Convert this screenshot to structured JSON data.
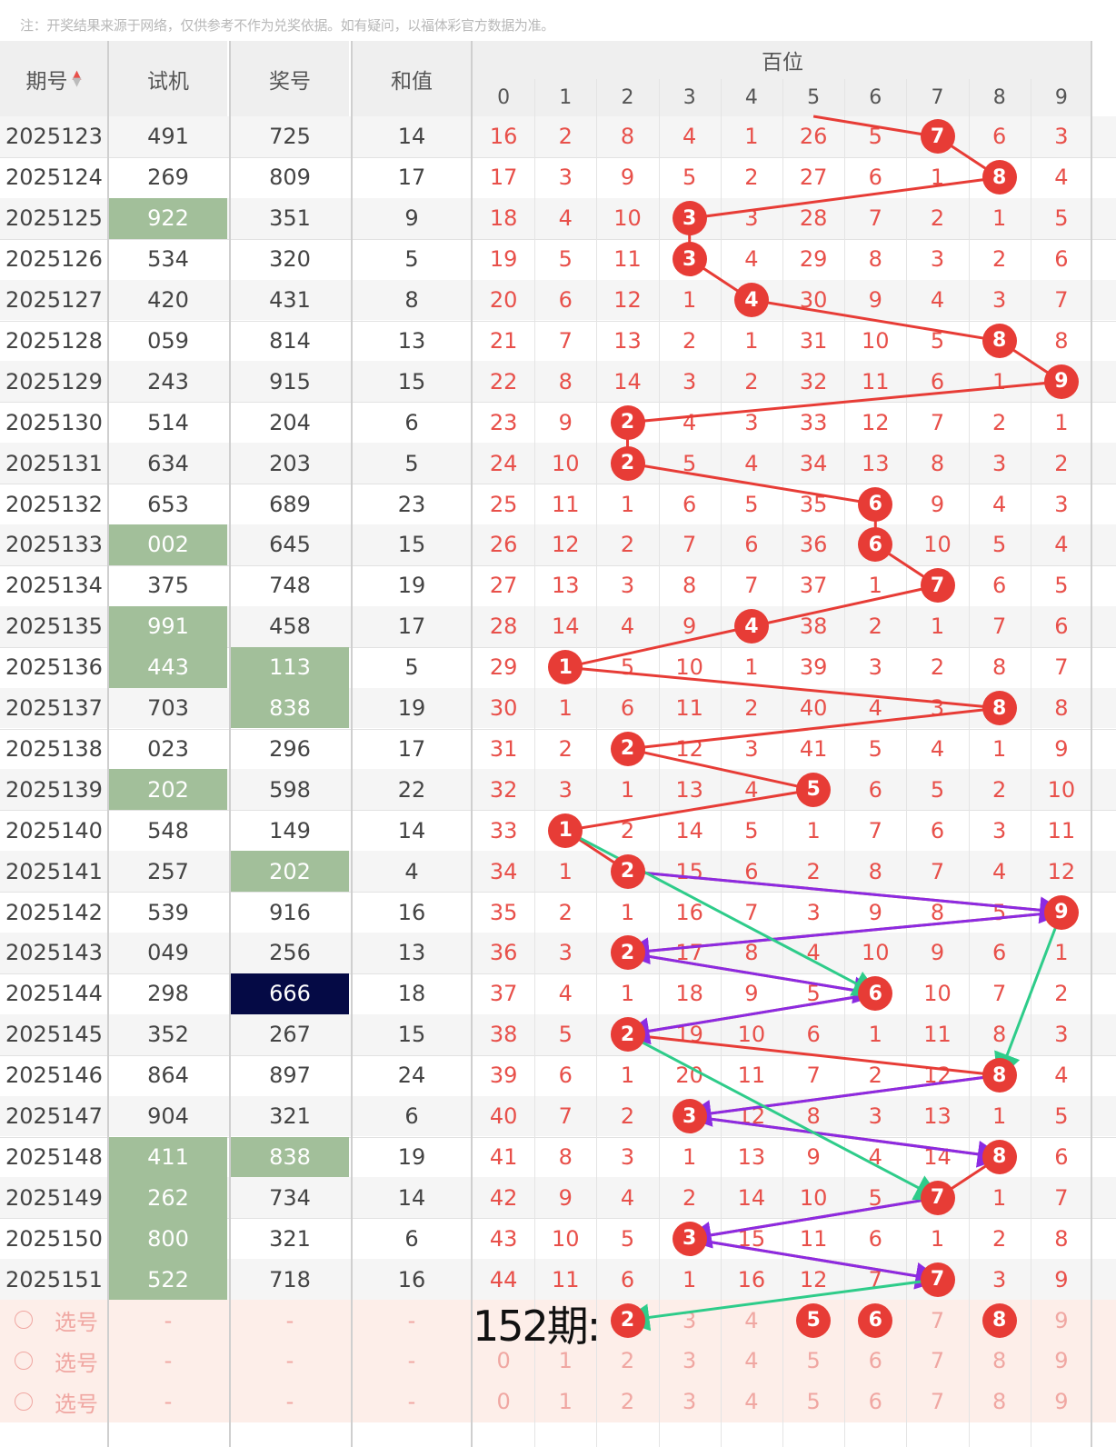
{
  "note": "注：开奖结果来源于网络，仅供参考不作为兑奖依据。如有疑问，以福体彩官方数据为准。",
  "headers": {
    "issue": "期号",
    "sort_icon": "sort-arrows-icon",
    "trial": "试机",
    "draw": "奖号",
    "sum": "和值",
    "group": "百位",
    "digits": [
      "0",
      "1",
      "2",
      "3",
      "4",
      "5",
      "6",
      "7",
      "8",
      "9"
    ]
  },
  "colors": {
    "hit_ball": "#e73c36",
    "miss_text": "#e8504a",
    "repeat_highlight": "#a2bf9a",
    "triple_highlight": "#050a45",
    "arrow_purple": "#8b2be2",
    "arrow_green": "#2ecc8a",
    "pick_row_bg": "#fdeee9"
  },
  "rows": [
    {
      "issue": "2025123",
      "trial": "491",
      "draw": "725",
      "sum": "14",
      "trial_hl": "",
      "draw_hl": "",
      "digits": [
        "16",
        "2",
        "8",
        "4",
        "1",
        "26",
        "5",
        "7",
        "6",
        "3"
      ],
      "hit": [
        7
      ]
    },
    {
      "issue": "2025124",
      "trial": "269",
      "draw": "809",
      "sum": "17",
      "trial_hl": "",
      "draw_hl": "",
      "digits": [
        "17",
        "3",
        "9",
        "5",
        "2",
        "27",
        "6",
        "1",
        "8",
        "4"
      ],
      "hit": [
        8
      ]
    },
    {
      "issue": "2025125",
      "trial": "922",
      "draw": "351",
      "sum": "9",
      "trial_hl": "green",
      "draw_hl": "",
      "digits": [
        "18",
        "4",
        "10",
        "3",
        "3",
        "28",
        "7",
        "2",
        "1",
        "5"
      ],
      "hit": [
        3
      ]
    },
    {
      "issue": "2025126",
      "trial": "534",
      "draw": "320",
      "sum": "5",
      "trial_hl": "",
      "draw_hl": "",
      "digits": [
        "19",
        "5",
        "11",
        "3",
        "4",
        "29",
        "8",
        "3",
        "2",
        "6"
      ],
      "hit": [
        3
      ]
    },
    {
      "issue": "2025127",
      "trial": "420",
      "draw": "431",
      "sum": "8",
      "trial_hl": "",
      "draw_hl": "",
      "digits": [
        "20",
        "6",
        "12",
        "1",
        "4",
        "30",
        "9",
        "4",
        "3",
        "7"
      ],
      "hit": [
        4
      ]
    },
    {
      "issue": "2025128",
      "trial": "059",
      "draw": "814",
      "sum": "13",
      "trial_hl": "",
      "draw_hl": "",
      "digits": [
        "21",
        "7",
        "13",
        "2",
        "1",
        "31",
        "10",
        "5",
        "8",
        "8"
      ],
      "hit": [
        8
      ]
    },
    {
      "issue": "2025129",
      "trial": "243",
      "draw": "915",
      "sum": "15",
      "trial_hl": "",
      "draw_hl": "",
      "digits": [
        "22",
        "8",
        "14",
        "3",
        "2",
        "32",
        "11",
        "6",
        "1",
        "9"
      ],
      "hit": [
        9
      ]
    },
    {
      "issue": "2025130",
      "trial": "514",
      "draw": "204",
      "sum": "6",
      "trial_hl": "",
      "draw_hl": "",
      "digits": [
        "23",
        "9",
        "2",
        "4",
        "3",
        "33",
        "12",
        "7",
        "2",
        "1"
      ],
      "hit": [
        2
      ]
    },
    {
      "issue": "2025131",
      "trial": "634",
      "draw": "203",
      "sum": "5",
      "trial_hl": "",
      "draw_hl": "",
      "digits": [
        "24",
        "10",
        "2",
        "5",
        "4",
        "34",
        "13",
        "8",
        "3",
        "2"
      ],
      "hit": [
        2
      ]
    },
    {
      "issue": "2025132",
      "trial": "653",
      "draw": "689",
      "sum": "23",
      "trial_hl": "",
      "draw_hl": "",
      "digits": [
        "25",
        "11",
        "1",
        "6",
        "5",
        "35",
        "6",
        "9",
        "4",
        "3"
      ],
      "hit": [
        6
      ]
    },
    {
      "issue": "2025133",
      "trial": "002",
      "draw": "645",
      "sum": "15",
      "trial_hl": "green",
      "draw_hl": "",
      "digits": [
        "26",
        "12",
        "2",
        "7",
        "6",
        "36",
        "6",
        "10",
        "5",
        "4"
      ],
      "hit": [
        6
      ]
    },
    {
      "issue": "2025134",
      "trial": "375",
      "draw": "748",
      "sum": "19",
      "trial_hl": "",
      "draw_hl": "",
      "digits": [
        "27",
        "13",
        "3",
        "8",
        "7",
        "37",
        "1",
        "7",
        "6",
        "5"
      ],
      "hit": [
        7
      ]
    },
    {
      "issue": "2025135",
      "trial": "991",
      "draw": "458",
      "sum": "17",
      "trial_hl": "green",
      "draw_hl": "",
      "digits": [
        "28",
        "14",
        "4",
        "9",
        "4",
        "38",
        "2",
        "1",
        "7",
        "6"
      ],
      "hit": [
        4
      ]
    },
    {
      "issue": "2025136",
      "trial": "443",
      "draw": "113",
      "sum": "5",
      "trial_hl": "green",
      "draw_hl": "green",
      "digits": [
        "29",
        "1",
        "5",
        "10",
        "1",
        "39",
        "3",
        "2",
        "8",
        "7"
      ],
      "hit": [
        1
      ]
    },
    {
      "issue": "2025137",
      "trial": "703",
      "draw": "838",
      "sum": "19",
      "trial_hl": "",
      "draw_hl": "green",
      "digits": [
        "30",
        "1",
        "6",
        "11",
        "2",
        "40",
        "4",
        "3",
        "8",
        "8"
      ],
      "hit": [
        8
      ]
    },
    {
      "issue": "2025138",
      "trial": "023",
      "draw": "296",
      "sum": "17",
      "trial_hl": "",
      "draw_hl": "",
      "digits": [
        "31",
        "2",
        "2",
        "12",
        "3",
        "41",
        "5",
        "4",
        "1",
        "9"
      ],
      "hit": [
        2
      ]
    },
    {
      "issue": "2025139",
      "trial": "202",
      "draw": "598",
      "sum": "22",
      "trial_hl": "green",
      "draw_hl": "",
      "digits": [
        "32",
        "3",
        "1",
        "13",
        "4",
        "5",
        "6",
        "5",
        "2",
        "10"
      ],
      "hit": [
        5
      ]
    },
    {
      "issue": "2025140",
      "trial": "548",
      "draw": "149",
      "sum": "14",
      "trial_hl": "",
      "draw_hl": "",
      "digits": [
        "33",
        "1",
        "2",
        "14",
        "5",
        "1",
        "7",
        "6",
        "3",
        "11"
      ],
      "hit": [
        1
      ]
    },
    {
      "issue": "2025141",
      "trial": "257",
      "draw": "202",
      "sum": "4",
      "trial_hl": "",
      "draw_hl": "green",
      "digits": [
        "34",
        "1",
        "2",
        "15",
        "6",
        "2",
        "8",
        "7",
        "4",
        "12"
      ],
      "hit": [
        2
      ]
    },
    {
      "issue": "2025142",
      "trial": "539",
      "draw": "916",
      "sum": "16",
      "trial_hl": "",
      "draw_hl": "",
      "digits": [
        "35",
        "2",
        "1",
        "16",
        "7",
        "3",
        "9",
        "8",
        "5",
        "9"
      ],
      "hit": [
        9
      ]
    },
    {
      "issue": "2025143",
      "trial": "049",
      "draw": "256",
      "sum": "13",
      "trial_hl": "",
      "draw_hl": "",
      "digits": [
        "36",
        "3",
        "2",
        "17",
        "8",
        "4",
        "10",
        "9",
        "6",
        "1"
      ],
      "hit": [
        2
      ]
    },
    {
      "issue": "2025144",
      "trial": "298",
      "draw": "666",
      "sum": "18",
      "trial_hl": "",
      "draw_hl": "navy",
      "digits": [
        "37",
        "4",
        "1",
        "18",
        "9",
        "5",
        "6",
        "10",
        "7",
        "2"
      ],
      "hit": [
        6
      ]
    },
    {
      "issue": "2025145",
      "trial": "352",
      "draw": "267",
      "sum": "15",
      "trial_hl": "",
      "draw_hl": "",
      "digits": [
        "38",
        "5",
        "2",
        "19",
        "10",
        "6",
        "1",
        "11",
        "8",
        "3"
      ],
      "hit": [
        2
      ]
    },
    {
      "issue": "2025146",
      "trial": "864",
      "draw": "897",
      "sum": "24",
      "trial_hl": "",
      "draw_hl": "",
      "digits": [
        "39",
        "6",
        "1",
        "20",
        "11",
        "7",
        "2",
        "12",
        "8",
        "4"
      ],
      "hit": [
        8
      ]
    },
    {
      "issue": "2025147",
      "trial": "904",
      "draw": "321",
      "sum": "6",
      "trial_hl": "",
      "draw_hl": "",
      "digits": [
        "40",
        "7",
        "2",
        "3",
        "12",
        "8",
        "3",
        "13",
        "1",
        "5"
      ],
      "hit": [
        3
      ]
    },
    {
      "issue": "2025148",
      "trial": "411",
      "draw": "838",
      "sum": "19",
      "trial_hl": "green",
      "draw_hl": "green",
      "digits": [
        "41",
        "8",
        "3",
        "1",
        "13",
        "9",
        "4",
        "14",
        "8",
        "6"
      ],
      "hit": [
        8
      ]
    },
    {
      "issue": "2025149",
      "trial": "262",
      "draw": "734",
      "sum": "14",
      "trial_hl": "green",
      "draw_hl": "",
      "digits": [
        "42",
        "9",
        "4",
        "2",
        "14",
        "10",
        "5",
        "7",
        "1",
        "7"
      ],
      "hit": [
        7
      ]
    },
    {
      "issue": "2025150",
      "trial": "800",
      "draw": "321",
      "sum": "6",
      "trial_hl": "green",
      "draw_hl": "",
      "digits": [
        "43",
        "10",
        "5",
        "3",
        "15",
        "11",
        "6",
        "1",
        "2",
        "8"
      ],
      "hit": [
        3
      ]
    },
    {
      "issue": "2025151",
      "trial": "522",
      "draw": "718",
      "sum": "16",
      "trial_hl": "green",
      "draw_hl": "",
      "digits": [
        "44",
        "11",
        "6",
        "1",
        "16",
        "12",
        "7",
        "7",
        "3",
        "9"
      ],
      "hit": [
        7
      ]
    }
  ],
  "pick_rows": [
    {
      "label": "选号",
      "trial": "-",
      "draw": "-",
      "sum": "-",
      "digits": [
        "",
        "",
        "2",
        "3",
        "4",
        "5",
        "6",
        "7",
        "8",
        "9"
      ],
      "hit": [
        2,
        5,
        6,
        8
      ]
    },
    {
      "label": "选号",
      "trial": "-",
      "draw": "-",
      "sum": "-",
      "digits": [
        "0",
        "1",
        "2",
        "3",
        "4",
        "5",
        "6",
        "7",
        "8",
        "9"
      ],
      "hit": []
    },
    {
      "label": "选号",
      "trial": "-",
      "draw": "-",
      "sum": "-",
      "digits": [
        "0",
        "1",
        "2",
        "3",
        "4",
        "5",
        "6",
        "7",
        "8",
        "9"
      ],
      "hit": []
    }
  ],
  "caption": "152期:",
  "red_path": [
    [
      0,
      7
    ],
    [
      1,
      8
    ],
    [
      2,
      3
    ],
    [
      3,
      3
    ],
    [
      4,
      4
    ],
    [
      5,
      8
    ],
    [
      6,
      9
    ],
    [
      7,
      2
    ],
    [
      8,
      2
    ],
    [
      9,
      6
    ],
    [
      10,
      6
    ],
    [
      11,
      7
    ],
    [
      12,
      4
    ],
    [
      13,
      1
    ],
    [
      14,
      8
    ],
    [
      15,
      2
    ],
    [
      16,
      5
    ],
    [
      17,
      1
    ],
    [
      18,
      2
    ],
    [
      19,
      9
    ],
    [
      20,
      2
    ],
    [
      21,
      6
    ],
    [
      22,
      2
    ],
    [
      23,
      8
    ],
    [
      24,
      3
    ],
    [
      25,
      8
    ],
    [
      26,
      7
    ],
    [
      27,
      3
    ],
    [
      28,
      7
    ]
  ],
  "purple_arrows": [
    [
      [
        18,
        2
      ],
      [
        19,
        9
      ]
    ],
    [
      [
        19,
        9
      ],
      [
        20,
        2
      ]
    ],
    [
      [
        20,
        2
      ],
      [
        21,
        6
      ]
    ],
    [
      [
        21,
        6
      ],
      [
        22,
        2
      ]
    ],
    [
      [
        23,
        8
      ],
      [
        24,
        3
      ]
    ],
    [
      [
        24,
        3
      ],
      [
        25,
        8
      ]
    ],
    [
      [
        26,
        7
      ],
      [
        27,
        3
      ]
    ],
    [
      [
        27,
        3
      ],
      [
        28,
        7
      ]
    ]
  ],
  "green_arrows": [
    [
      [
        17,
        1
      ],
      [
        21,
        6
      ]
    ],
    [
      [
        19,
        9
      ],
      [
        23,
        8
      ]
    ],
    [
      [
        22,
        2
      ],
      [
        26,
        7
      ]
    ],
    [
      [
        28,
        7
      ],
      [
        29,
        2
      ]
    ]
  ]
}
